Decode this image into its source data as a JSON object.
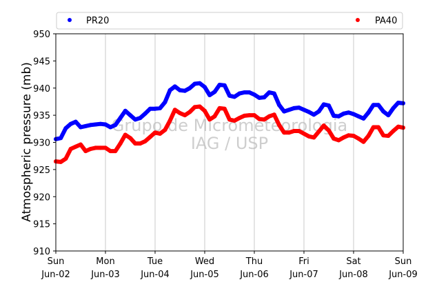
{
  "chart_data": {
    "type": "line",
    "ylabel": "Atmospheric pressure (mb)",
    "xlabel": "",
    "ylim": [
      910,
      950
    ],
    "yticks": [
      910,
      915,
      920,
      925,
      930,
      935,
      940,
      945,
      950
    ],
    "xlim": [
      0,
      7
    ],
    "grid": "vertical",
    "legend_placement": "top",
    "x_ticks": [
      {
        "x": 0,
        "day": "Sun",
        "date": "Jun-02"
      },
      {
        "x": 1,
        "day": "Mon",
        "date": "Jun-03"
      },
      {
        "x": 2,
        "day": "Tue",
        "date": "Jun-04"
      },
      {
        "x": 3,
        "day": "Wed",
        "date": "Jun-05"
      },
      {
        "x": 4,
        "day": "Thu",
        "date": "Jun-06"
      },
      {
        "x": 5,
        "day": "Fri",
        "date": "Jun-07"
      },
      {
        "x": 6,
        "day": "Sat",
        "date": "Jun-08"
      },
      {
        "x": 7,
        "day": "Sun",
        "date": "Jun-09"
      }
    ],
    "x_units": "days since Sun Jun-02 00:00",
    "series": [
      {
        "name": "PR20",
        "color": "#0000ff",
        "x": [
          0.0,
          0.1,
          0.2,
          0.3,
          0.4,
          0.5,
          0.6,
          0.7,
          0.8,
          0.9,
          1.0,
          1.1,
          1.2,
          1.3,
          1.4,
          1.5,
          1.6,
          1.7,
          1.8,
          1.9,
          2.0,
          2.1,
          2.2,
          2.3,
          2.4,
          2.5,
          2.6,
          2.7,
          2.8,
          2.9,
          3.0,
          3.1,
          3.2,
          3.3,
          3.4,
          3.5,
          3.6,
          3.7,
          3.8,
          3.9,
          4.0,
          4.1,
          4.2,
          4.3,
          4.4,
          4.5,
          4.6,
          4.7,
          4.8,
          4.9,
          5.0,
          5.1,
          5.2,
          5.3,
          5.4,
          5.5,
          5.6,
          5.7,
          5.8,
          5.9,
          6.0,
          6.1,
          6.2,
          6.3,
          6.4,
          6.5,
          6.6,
          6.7,
          6.8,
          6.9,
          7.0
        ],
        "values": [
          930.6,
          930.8,
          932.6,
          933.4,
          933.8,
          932.8,
          933.0,
          933.2,
          933.3,
          933.4,
          933.3,
          932.8,
          933.2,
          934.5,
          935.8,
          935.0,
          934.2,
          934.5,
          935.3,
          936.2,
          936.2,
          936.3,
          937.4,
          939.6,
          940.3,
          939.6,
          939.5,
          940.0,
          940.8,
          940.9,
          940.2,
          938.7,
          939.3,
          940.6,
          940.5,
          938.6,
          938.4,
          939.0,
          939.2,
          939.2,
          938.8,
          938.2,
          938.3,
          939.2,
          939.0,
          936.9,
          935.7,
          936.0,
          936.3,
          936.4,
          936.0,
          935.6,
          935.1,
          935.7,
          937.0,
          936.8,
          934.9,
          934.8,
          935.3,
          935.5,
          935.2,
          934.8,
          934.4,
          935.5,
          936.9,
          936.9,
          935.7,
          935.0,
          936.3,
          937.3,
          937.2
        ]
      },
      {
        "name": "PA40",
        "color": "#ff0000",
        "x": [
          0.0,
          0.1,
          0.2,
          0.3,
          0.4,
          0.5,
          0.6,
          0.7,
          0.8,
          0.9,
          1.0,
          1.1,
          1.2,
          1.3,
          1.4,
          1.5,
          1.6,
          1.7,
          1.8,
          1.9,
          2.0,
          2.1,
          2.2,
          2.3,
          2.4,
          2.5,
          2.6,
          2.7,
          2.8,
          2.9,
          3.0,
          3.1,
          3.2,
          3.3,
          3.4,
          3.5,
          3.6,
          3.7,
          3.8,
          3.9,
          4.0,
          4.1,
          4.2,
          4.3,
          4.4,
          4.5,
          4.6,
          4.7,
          4.8,
          4.9,
          5.0,
          5.1,
          5.2,
          5.3,
          5.4,
          5.5,
          5.6,
          5.7,
          5.8,
          5.9,
          6.0,
          6.1,
          6.2,
          6.3,
          6.4,
          6.5,
          6.6,
          6.7,
          6.8,
          6.9,
          7.0
        ],
        "values": [
          926.5,
          926.4,
          927.0,
          928.8,
          929.2,
          929.6,
          928.4,
          928.8,
          929.0,
          929.0,
          929.0,
          928.4,
          928.4,
          929.8,
          931.4,
          930.8,
          929.8,
          929.8,
          930.2,
          931.0,
          931.8,
          931.6,
          932.3,
          934.0,
          936.0,
          935.4,
          935.0,
          935.6,
          936.5,
          936.6,
          935.8,
          934.2,
          934.8,
          936.3,
          936.2,
          934.2,
          934.0,
          934.5,
          934.9,
          935.0,
          935.0,
          934.3,
          934.2,
          934.8,
          935.1,
          933.2,
          931.8,
          931.8,
          932.1,
          932.1,
          931.6,
          931.1,
          930.9,
          932.0,
          933.1,
          932.2,
          930.7,
          930.4,
          930.9,
          931.3,
          931.2,
          930.7,
          930.1,
          931.2,
          932.8,
          932.8,
          931.3,
          931.2,
          932.1,
          932.9,
          932.7
        ]
      }
    ],
    "watermark": [
      "Grupo de Micrometeorologia",
      "IAG / USP"
    ]
  }
}
